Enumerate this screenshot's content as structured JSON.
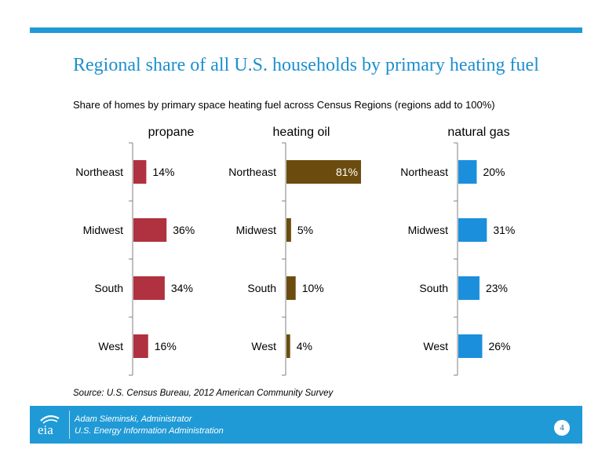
{
  "title": "Regional share of all U.S. households by primary heating fuel",
  "subtitle": "Share of homes by primary space heating fuel across Census Regions (regions add to 100%)",
  "source": "Source: U.S. Census Bureau, 2012 American Community Survey",
  "footer": {
    "name": "Adam Sieminski, Administrator",
    "agency": "U.S. Energy Information Administration",
    "logo_text": "eia",
    "page_number": "4"
  },
  "colors": {
    "accent": "#1f9ad6",
    "title": "#1c8fcf",
    "propane": "#b0313f",
    "heating_oil": "#6b4c0e",
    "natural_gas": "#1b8fdc"
  },
  "chart_data": [
    {
      "type": "bar",
      "orientation": "horizontal",
      "title": "propane",
      "categories": [
        "Northeast",
        "Midwest",
        "South",
        "West"
      ],
      "values": [
        14,
        36,
        34,
        16
      ],
      "value_labels": [
        "14%",
        "36%",
        "34%",
        "16%"
      ],
      "color": "#b0313f",
      "xlim": [
        0,
        81
      ],
      "grid": false
    },
    {
      "type": "bar",
      "orientation": "horizontal",
      "title": "heating oil",
      "categories": [
        "Northeast",
        "Midwest",
        "South",
        "West"
      ],
      "values": [
        81,
        5,
        10,
        4
      ],
      "value_labels": [
        "81%",
        "5%",
        "10%",
        "4%"
      ],
      "color": "#6b4c0e",
      "xlim": [
        0,
        81
      ],
      "grid": false
    },
    {
      "type": "bar",
      "orientation": "horizontal",
      "title": "natural gas",
      "categories": [
        "Northeast",
        "Midwest",
        "South",
        "West"
      ],
      "values": [
        20,
        31,
        23,
        26
      ],
      "value_labels": [
        "20%",
        "31%",
        "23%",
        "26%"
      ],
      "color": "#1b8fdc",
      "xlim": [
        0,
        81
      ],
      "grid": false
    }
  ]
}
